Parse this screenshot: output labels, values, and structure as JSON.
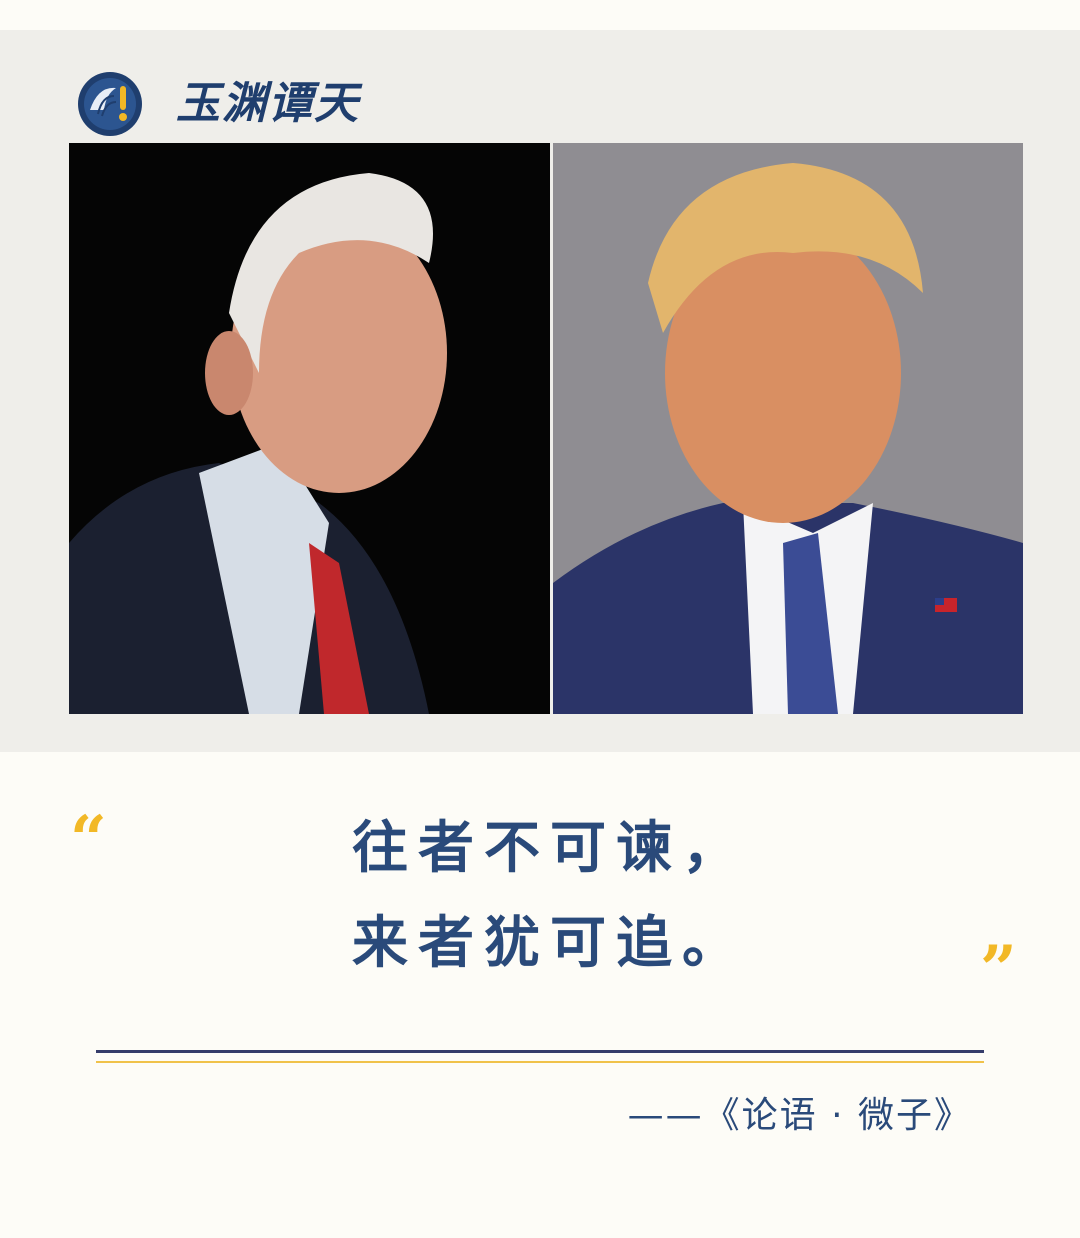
{
  "header": {
    "brand_name": "玉渊谭天",
    "logo_icon": "brand-logo-icon"
  },
  "photos": {
    "left_icon": "portrait-photo-icon",
    "right_icon": "portrait-photo-icon"
  },
  "quote": {
    "open_mark": "“",
    "line_1": "往者不可谏，",
    "line_2": "来者犹可追。",
    "close_mark": "”",
    "attribution": "——《论语 · 微子》"
  },
  "colors": {
    "accent_navy": "#2a4a7a",
    "accent_gold": "#f2b826",
    "panel_bg": "#efeeea",
    "page_bg": "#fdfcf7"
  }
}
